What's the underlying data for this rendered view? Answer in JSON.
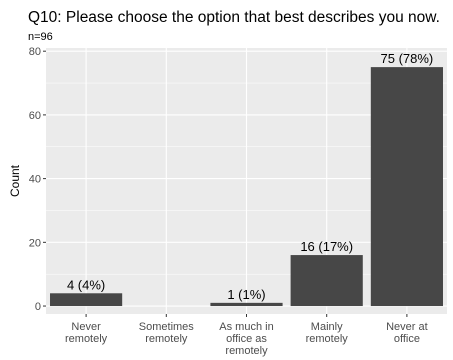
{
  "chart_data": {
    "type": "bar",
    "title": "Q10: Please choose the option that best describes you now.",
    "subtitle": "n=96",
    "xlabel": "",
    "ylabel": "Count",
    "categories": [
      [
        "Never",
        "remotely"
      ],
      [
        "Sometimes",
        "remotely"
      ],
      [
        "As much in",
        "office as",
        "remotely"
      ],
      [
        "Mainly",
        "remotely"
      ],
      [
        "Never at",
        "office"
      ]
    ],
    "values": [
      4,
      0,
      1,
      16,
      75
    ],
    "data_labels": [
      "4 (4%)",
      "",
      "1 (1%)",
      "16 (17%)",
      "75 (78%)"
    ],
    "ylim": [
      -2.5,
      81
    ],
    "yticks": [
      0,
      20,
      40,
      60,
      80
    ],
    "grid": true,
    "colors": {
      "panel": "#ebebeb",
      "grid": "#ffffff",
      "bar": "#474747"
    }
  }
}
